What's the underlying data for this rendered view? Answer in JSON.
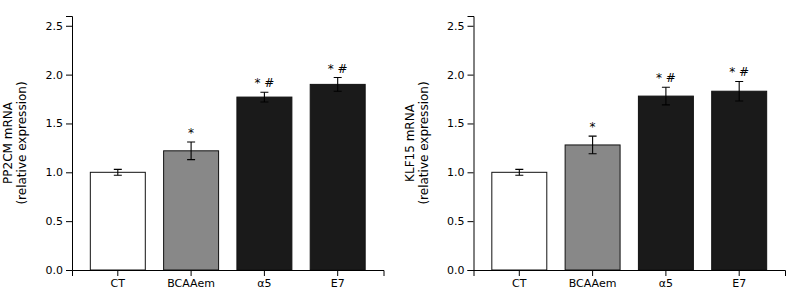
{
  "chart_data": [
    {
      "type": "bar",
      "y_label": "PP2CM mRNA\n(relative expression)",
      "categories": [
        "CT",
        "BCAAem",
        "α5",
        "E7"
      ],
      "values": [
        1.0,
        1.22,
        1.77,
        1.9
      ],
      "errors": [
        0.03,
        0.09,
        0.05,
        0.07
      ],
      "colors": [
        "#ffffff",
        "#888888",
        "#1a1a1a",
        "#1a1a1a"
      ],
      "annotations": [
        null,
        "*",
        "* #",
        "* #"
      ],
      "ylim": [
        0.0,
        2.6
      ],
      "yticks": [
        {
          "value": 0.0,
          "label": "0.0"
        },
        0.5,
        {
          "value": 1.0,
          "label": "1.0"
        },
        1.5,
        {
          "value": 2.0,
          "label": "2.0"
        },
        2.5
      ],
      "grid": false
    },
    {
      "type": "bar",
      "y_label": "KLF15 mRNA\n(relative expression)",
      "categories": [
        "CT",
        "BCAAem",
        "α5",
        "E7"
      ],
      "values": [
        1.0,
        1.28,
        1.78,
        1.83
      ],
      "errors": [
        0.03,
        0.09,
        0.09,
        0.1
      ],
      "colors": [
        "#ffffff",
        "#888888",
        "#1a1a1a",
        "#1a1a1a"
      ],
      "annotations": [
        null,
        "*",
        "* #",
        "* #"
      ],
      "ylim": [
        0.0,
        2.6
      ],
      "yticks": [
        {
          "value": 0.0,
          "label": "0.0"
        },
        0.5,
        {
          "value": 1.0,
          "label": "1.0"
        },
        1.5,
        {
          "value": 2.0,
          "label": "2.0"
        },
        2.5
      ],
      "grid": false
    }
  ]
}
